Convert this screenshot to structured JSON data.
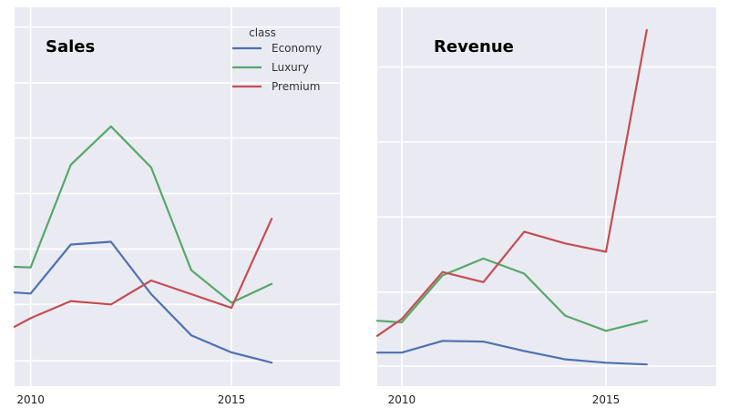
{
  "chart_data": [
    {
      "type": "line",
      "title": "Sales",
      "xlim": [
        2009.6,
        2017.7
      ],
      "ylim": [
        0,
        100
      ],
      "x_ticks": [
        2010,
        2015
      ],
      "x_tick_labels": [
        "2010",
        "2015"
      ],
      "y_gridlines": [
        1.5,
        18,
        34.2,
        50.4,
        66.6,
        82.7,
        99
      ],
      "grid": true,
      "legend": {
        "title": "class",
        "placement": "top-right",
        "entries": [
          "Economy",
          "Luxury",
          "Premium"
        ]
      },
      "x": [
        2009.6,
        2010,
        2011,
        2012,
        2013,
        2014,
        2015,
        2016
      ],
      "series": [
        {
          "name": "Economy",
          "color": "#4c72b0",
          "values": [
            21.5,
            21.2,
            35.5,
            36.3,
            21.0,
            9.0,
            4.0,
            1.0
          ]
        },
        {
          "name": "Luxury",
          "color": "#55a868",
          "values": [
            29.0,
            28.8,
            58.8,
            70.0,
            58.0,
            28.0,
            18.5,
            24.0
          ]
        },
        {
          "name": "Premium",
          "color": "#c44e52",
          "values": [
            11.5,
            14.0,
            19.0,
            18.0,
            25.0,
            21.0,
            17.0,
            43.0
          ]
        }
      ]
    },
    {
      "type": "line",
      "title": "Revenue",
      "xlim": [
        2009.4,
        2017.7
      ],
      "ylim": [
        0,
        100
      ],
      "x_ticks": [
        2010,
        2015
      ],
      "x_tick_labels": [
        "2010",
        "2015"
      ],
      "y_gridlines": [
        0,
        22,
        44.4,
        66.7,
        89
      ],
      "grid": true,
      "x": [
        2009.4,
        2010,
        2011,
        2012,
        2013,
        2014,
        2015,
        2016
      ],
      "series": [
        {
          "name": "Economy",
          "color": "#4c72b0",
          "values": [
            4.0,
            4.0,
            7.5,
            7.3,
            4.5,
            2.0,
            1.0,
            0.5
          ]
        },
        {
          "name": "Luxury",
          "color": "#55a868",
          "values": [
            13.5,
            13.0,
            27.0,
            32.0,
            27.5,
            15.0,
            10.5,
            13.5
          ]
        },
        {
          "name": "Premium",
          "color": "#c44e52",
          "values": [
            9.0,
            14.0,
            28.0,
            25.0,
            40.0,
            36.5,
            34.0,
            100.0
          ]
        }
      ]
    }
  ]
}
